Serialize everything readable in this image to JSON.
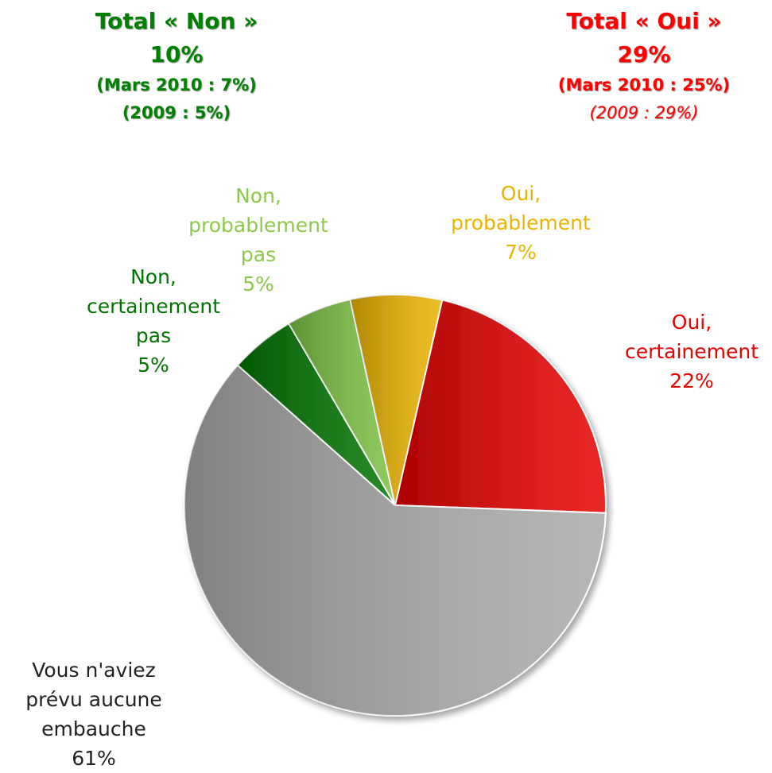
{
  "chart_data": {
    "type": "pie",
    "categories": [
      "Oui, certainement",
      "Vous n'aviez prévu aucune embauche",
      "Non, certainement pas",
      "Non, probablement pas",
      "Oui, probablement"
    ],
    "values": [
      22,
      61,
      5,
      5,
      7
    ],
    "value_labels": [
      "22%",
      "61%",
      "5%",
      "5%",
      "7%"
    ],
    "colors": [
      "#e60000",
      "#aaaaaa",
      "#007400",
      "#7cc142",
      "#eab300"
    ],
    "annotations": [
      {
        "title": "Total « Non »",
        "value": "10%",
        "lines": [
          "(Mars 2010 : 7%)",
          "(2009 : 5%)"
        ],
        "color": "#008000"
      },
      {
        "title": "Total « Oui »",
        "value": "29%",
        "lines": [
          "(Mars 2010 : 25%)",
          "(2009 : 29%)"
        ],
        "color": "#ff0000"
      }
    ]
  }
}
